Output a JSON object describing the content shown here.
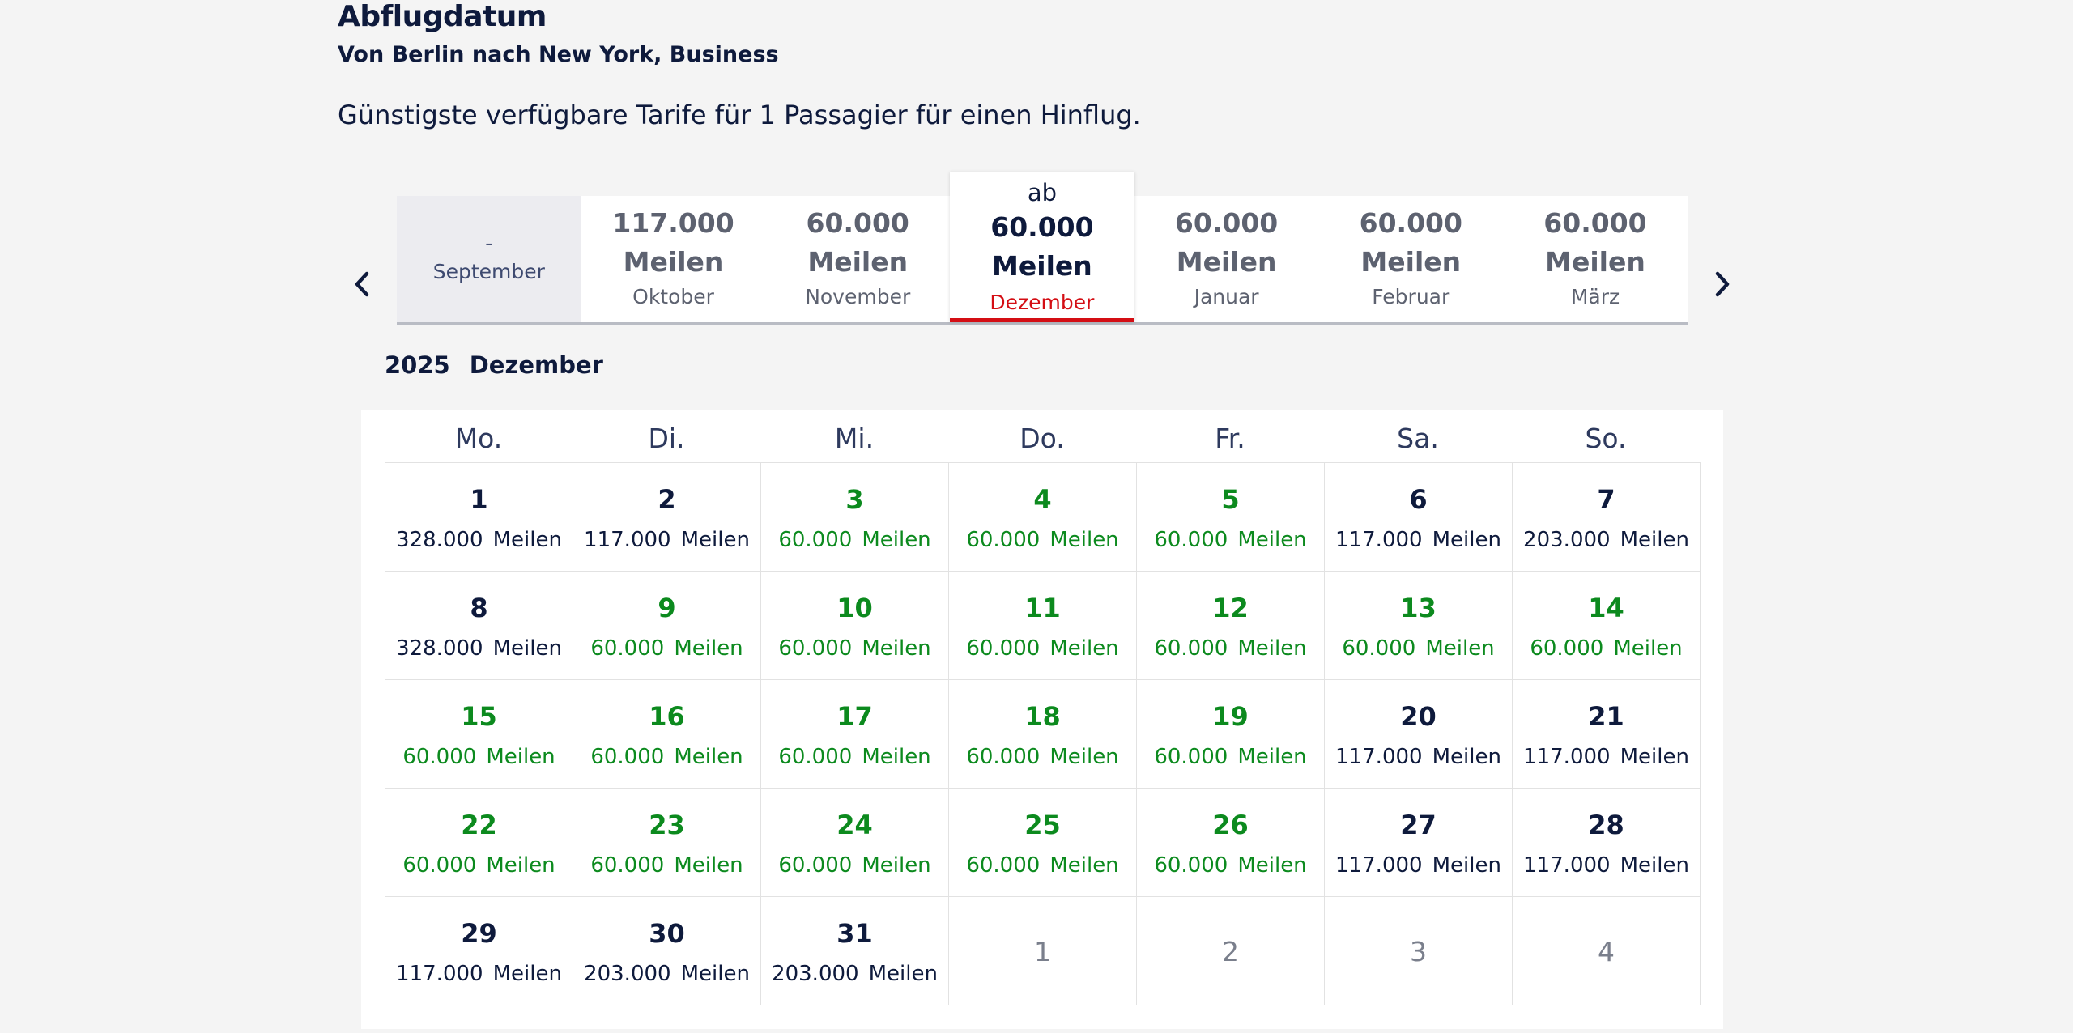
{
  "header": {
    "title": "Abflugdatum",
    "subtitle": "Von Berlin nach New York, Business",
    "intro": "Günstigste verfügbare Tarife für 1 Passagier für einen Hinflug."
  },
  "carousel": {
    "prev_icon": "chevron-left-icon",
    "next_icon": "chevron-right-icon",
    "active_prefix": "ab",
    "months": [
      {
        "value": "-",
        "unit": "",
        "name": "September",
        "state": "disabled"
      },
      {
        "value": "117.000",
        "unit": "Meilen",
        "name": "Oktober",
        "state": "normal"
      },
      {
        "value": "60.000",
        "unit": "Meilen",
        "name": "November",
        "state": "normal"
      },
      {
        "value": "60.000",
        "unit": "Meilen",
        "name": "Dezember",
        "state": "active"
      },
      {
        "value": "60.000",
        "unit": "Meilen",
        "name": "Januar",
        "state": "normal"
      },
      {
        "value": "60.000",
        "unit": "Meilen",
        "name": "Februar",
        "state": "normal"
      },
      {
        "value": "60.000",
        "unit": "Meilen",
        "name": "März",
        "state": "normal"
      }
    ]
  },
  "calendar": {
    "year": "2025",
    "month": "Dezember",
    "weekdays": [
      "Mo.",
      "Di.",
      "Mi.",
      "Do.",
      "Fr.",
      "Sa.",
      "So."
    ],
    "unit": "Meilen",
    "colors": {
      "cheapest": "#0c8a1e",
      "regular": "#0e1a3c",
      "active_month": "#d40e14"
    },
    "days": [
      {
        "day": "1",
        "price": "328.000",
        "cheapest": false
      },
      {
        "day": "2",
        "price": "117.000",
        "cheapest": false
      },
      {
        "day": "3",
        "price": "60.000",
        "cheapest": true
      },
      {
        "day": "4",
        "price": "60.000",
        "cheapest": true
      },
      {
        "day": "5",
        "price": "60.000",
        "cheapest": true
      },
      {
        "day": "6",
        "price": "117.000",
        "cheapest": false
      },
      {
        "day": "7",
        "price": "203.000",
        "cheapest": false
      },
      {
        "day": "8",
        "price": "328.000",
        "cheapest": false
      },
      {
        "day": "9",
        "price": "60.000",
        "cheapest": true
      },
      {
        "day": "10",
        "price": "60.000",
        "cheapest": true
      },
      {
        "day": "11",
        "price": "60.000",
        "cheapest": true
      },
      {
        "day": "12",
        "price": "60.000",
        "cheapest": true
      },
      {
        "day": "13",
        "price": "60.000",
        "cheapest": true
      },
      {
        "day": "14",
        "price": "60.000",
        "cheapest": true
      },
      {
        "day": "15",
        "price": "60.000",
        "cheapest": true
      },
      {
        "day": "16",
        "price": "60.000",
        "cheapest": true
      },
      {
        "day": "17",
        "price": "60.000",
        "cheapest": true
      },
      {
        "day": "18",
        "price": "60.000",
        "cheapest": true
      },
      {
        "day": "19",
        "price": "60.000",
        "cheapest": true
      },
      {
        "day": "20",
        "price": "117.000",
        "cheapest": false
      },
      {
        "day": "21",
        "price": "117.000",
        "cheapest": false
      },
      {
        "day": "22",
        "price": "60.000",
        "cheapest": true
      },
      {
        "day": "23",
        "price": "60.000",
        "cheapest": true
      },
      {
        "day": "24",
        "price": "60.000",
        "cheapest": true
      },
      {
        "day": "25",
        "price": "60.000",
        "cheapest": true
      },
      {
        "day": "26",
        "price": "60.000",
        "cheapest": true
      },
      {
        "day": "27",
        "price": "117.000",
        "cheapest": false
      },
      {
        "day": "28",
        "price": "117.000",
        "cheapest": false
      },
      {
        "day": "29",
        "price": "117.000",
        "cheapest": false
      },
      {
        "day": "30",
        "price": "203.000",
        "cheapest": false
      },
      {
        "day": "31",
        "price": "203.000",
        "cheapest": false
      }
    ],
    "trailing_days": [
      "1",
      "2",
      "3",
      "4"
    ]
  }
}
